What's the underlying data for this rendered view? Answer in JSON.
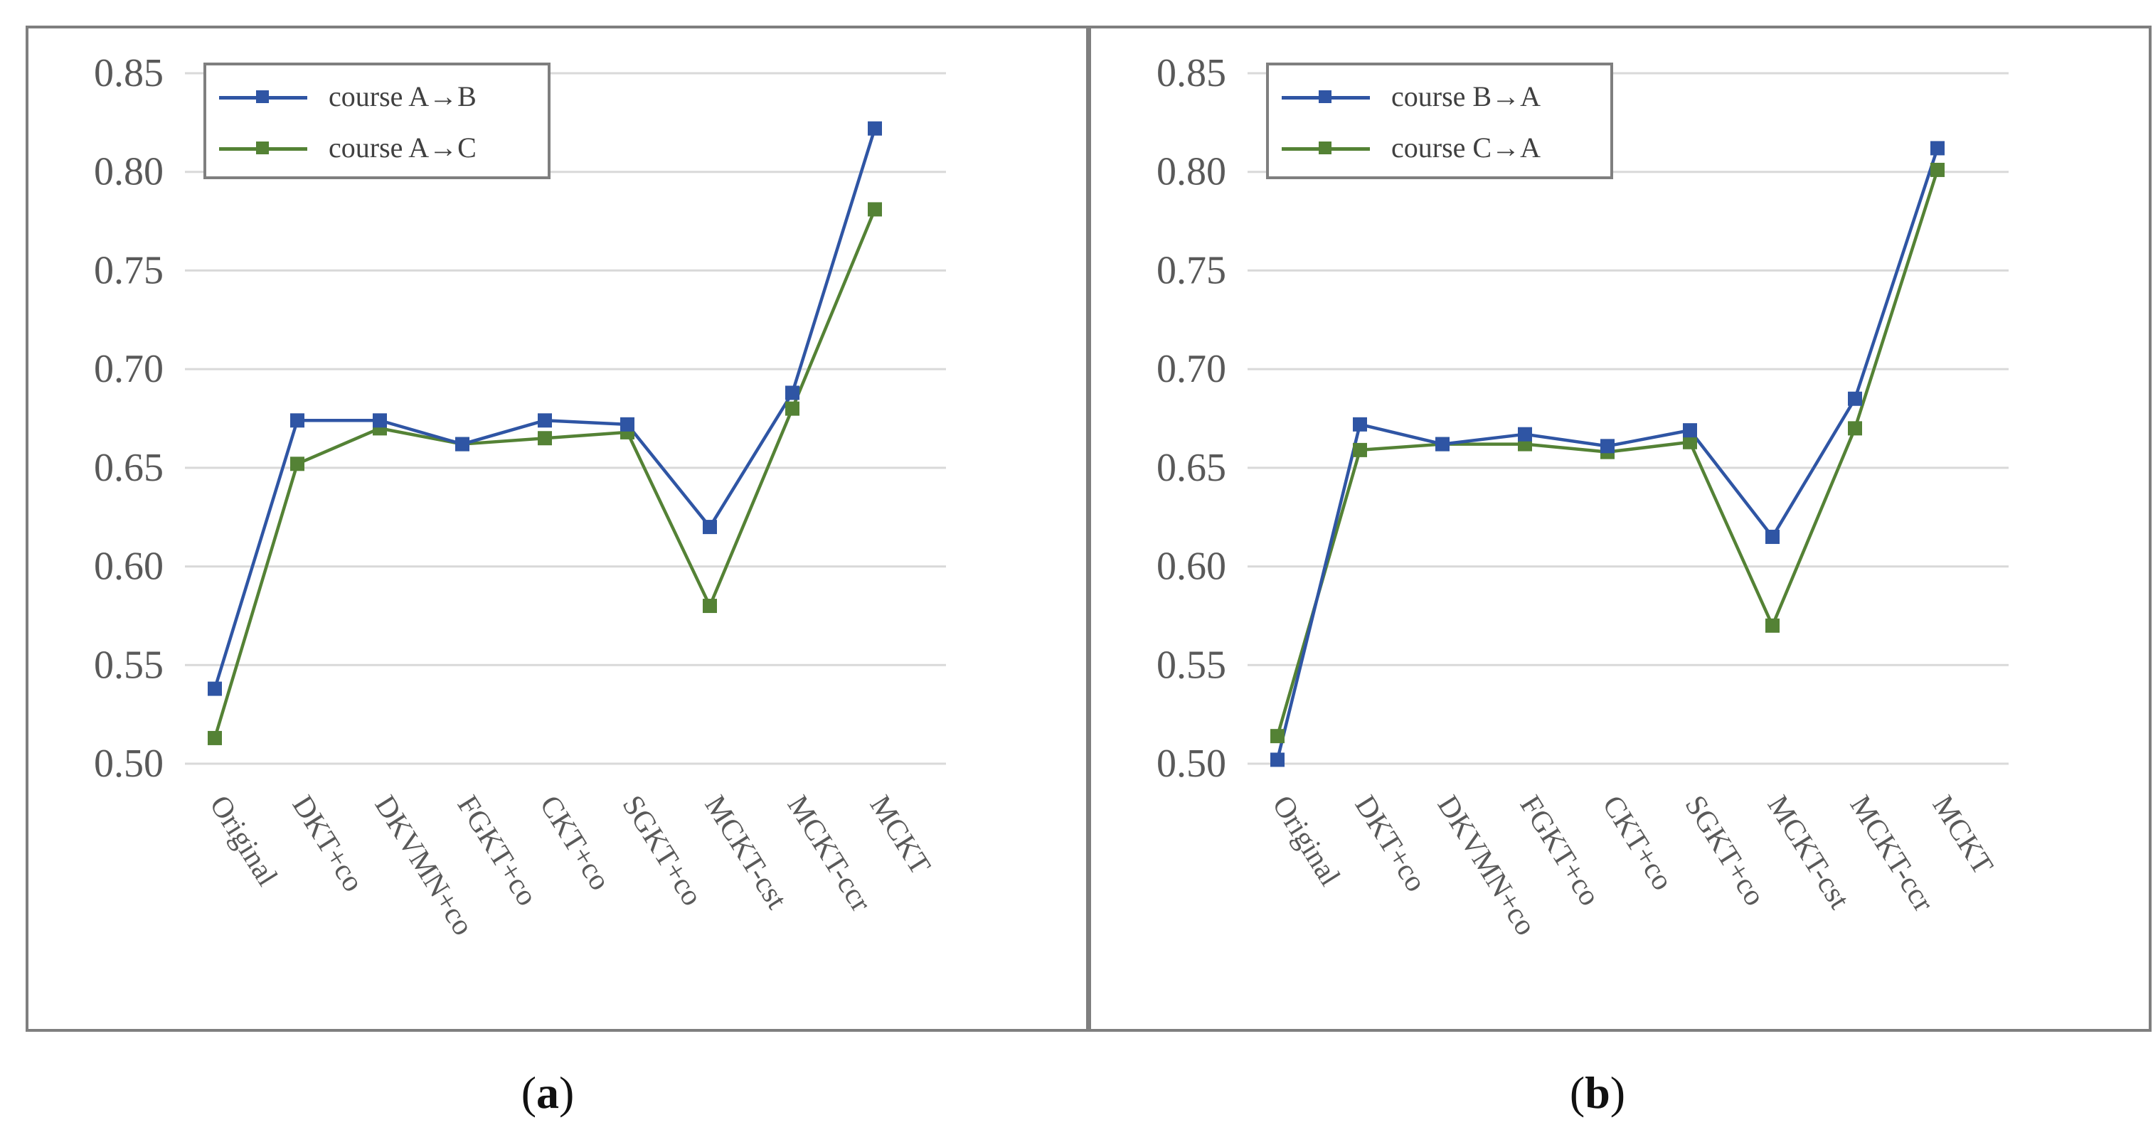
{
  "chart_data": [
    {
      "type": "line",
      "panel": "a",
      "caption": "a",
      "categories": [
        "Original",
        "DKT+co",
        "DKVMN+co",
        "FGKT+co",
        "CKT+co",
        "SGKT+co",
        "MCKT-cst",
        "MCKT-ccr",
        "MCKT"
      ],
      "series": [
        {
          "name": "course A→B",
          "color": "#2f55a4",
          "values": [
            0.538,
            0.674,
            0.674,
            0.662,
            0.674,
            0.672,
            0.62,
            0.688,
            0.822
          ]
        },
        {
          "name": "course A→C",
          "color": "#548235",
          "values": [
            0.513,
            0.652,
            0.67,
            0.662,
            0.665,
            0.668,
            0.58,
            0.68,
            0.781
          ]
        }
      ],
      "yticks": [
        "0.50",
        "0.55",
        "0.60",
        "0.65",
        "0.70",
        "0.75",
        "0.80",
        "0.85"
      ],
      "ylim": [
        0.5,
        0.85
      ],
      "grid": true,
      "legend": "top-left"
    },
    {
      "type": "line",
      "panel": "b",
      "caption": "b",
      "categories": [
        "Original",
        "DKT+co",
        "DKVMN+co",
        "FGKT+co",
        "CKT+co",
        "SGKT+co",
        "MCKT-cst",
        "MCKT-ccr",
        "MCKT"
      ],
      "series": [
        {
          "name": "course B→A",
          "color": "#2f55a4",
          "values": [
            0.502,
            0.672,
            0.662,
            0.667,
            0.661,
            0.669,
            0.615,
            0.685,
            0.812
          ]
        },
        {
          "name": "course C→A",
          "color": "#548235",
          "values": [
            0.514,
            0.659,
            0.662,
            0.662,
            0.658,
            0.663,
            0.57,
            0.67,
            0.801
          ]
        }
      ],
      "yticks": [
        "0.50",
        "0.55",
        "0.60",
        "0.65",
        "0.70",
        "0.75",
        "0.80",
        "0.85"
      ],
      "ylim": [
        0.5,
        0.85
      ],
      "grid": true,
      "legend": "top-left"
    }
  ]
}
